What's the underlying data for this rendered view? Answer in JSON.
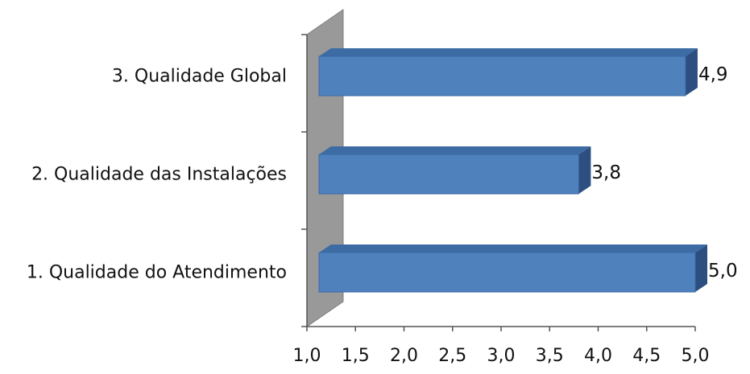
{
  "chart_data": {
    "type": "bar",
    "orientation": "horizontal",
    "style": "3d",
    "categories": [
      "1. Qualidade do Atendimento",
      "2. Qualidade das Instalações",
      "3. Qualidade Global"
    ],
    "values": [
      5.0,
      3.8,
      4.9
    ],
    "data_labels": [
      "5,0",
      "3,8",
      "4,9"
    ],
    "xlim": [
      1.0,
      5.0
    ],
    "x_ticks": [
      "1,0",
      "1,5",
      "2,0",
      "2,5",
      "3,0",
      "3,5",
      "4,0",
      "4,5",
      "5,0"
    ],
    "title": "",
    "xlabel": "",
    "ylabel": "",
    "grid": false,
    "legend": false,
    "colors": {
      "bar_front": "#4f81bd",
      "bar_top": "#3d6ba3",
      "bar_side": "#2c4f80",
      "back_wall": "#999999",
      "axis": "#555555"
    }
  }
}
